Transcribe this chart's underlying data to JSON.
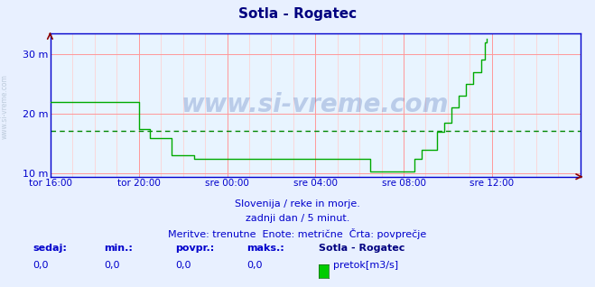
{
  "title": "Sotla - Rogatec",
  "title_color": "#000080",
  "bg_color": "#e8f0ff",
  "plot_bg_color": "#e8f4ff",
  "axis_color": "#0000cc",
  "grid_color_major": "#ff9999",
  "grid_color_minor": "#ffcccc",
  "line_color": "#00aa00",
  "avg_line_color": "#008800",
  "xlabel_color": "#0000aa",
  "watermark": "www.si-vreme.com",
  "watermark_color": "#3355aa",
  "subtitle1": "Slovenija / reke in morje.",
  "subtitle2": "zadnji dan / 5 minut.",
  "subtitle3": "Meritve: trenutne  Enote: metrične  Črta: povprečje",
  "footer_labels": [
    "sedaj:",
    "min.:",
    "povpr.:",
    "maks.:"
  ],
  "footer_values": [
    "0,0",
    "0,0",
    "0,0",
    "0,0"
  ],
  "footer_station": "Sotla - Rogatec",
  "footer_legend": "pretok[m3/s]",
  "footer_legend_color": "#00cc00",
  "ylim": [
    9.5,
    33.5
  ],
  "yticks": [
    10,
    20,
    30
  ],
  "ytick_labels": [
    "10 m",
    "20 m",
    "30 m"
  ],
  "avg_value": 17.2,
  "x_tick_labels": [
    "tor 16:00",
    "tor 20:00",
    "sre 00:00",
    "sre 04:00",
    "sre 08:00",
    "sre 12:00"
  ],
  "x_tick_positions": [
    0,
    48,
    96,
    144,
    192,
    240
  ],
  "total_points": 288,
  "series": [
    22,
    22,
    22,
    22,
    22,
    22,
    22,
    22,
    22,
    22,
    22,
    22,
    22,
    22,
    22,
    22,
    22,
    22,
    22,
    22,
    22,
    22,
    22,
    22,
    22,
    22,
    22,
    22,
    22,
    22,
    22,
    22,
    22,
    22,
    22,
    22,
    22,
    22,
    22,
    22,
    22,
    22,
    22,
    22,
    22,
    22,
    22,
    22,
    17.5,
    17.5,
    17.5,
    17.5,
    17.5,
    17.5,
    16,
    16,
    16,
    16,
    16,
    16,
    16,
    16,
    16,
    16,
    16,
    16,
    13,
    13,
    13,
    13,
    13,
    13,
    13,
    13,
    13,
    13,
    13,
    13,
    12.5,
    12.5,
    12.5,
    12.5,
    12.5,
    12.5,
    12.5,
    12.5,
    12.5,
    12.5,
    12.5,
    12.5,
    12.5,
    12.5,
    12.5,
    12.5,
    12.5,
    12.5,
    12.5,
    12.5,
    12.5,
    12.5,
    12.5,
    12.5,
    12.5,
    12.5,
    12.5,
    12.5,
    12.5,
    12.5,
    12.5,
    12.5,
    12.5,
    12.5,
    12.5,
    12.5,
    12.5,
    12.5,
    12.5,
    12.5,
    12.5,
    12.5,
    12.5,
    12.5,
    12.5,
    12.5,
    12.5,
    12.5,
    12.5,
    12.5,
    12.5,
    12.5,
    12.5,
    12.5,
    12.5,
    12.5,
    12.5,
    12.5,
    12.5,
    12.5,
    12.5,
    12.5,
    12.5,
    12.5,
    12.5,
    12.5,
    12.5,
    12.5,
    12.5,
    12.5,
    12.5,
    12.5,
    12.5,
    12.5,
    12.5,
    12.5,
    12.5,
    12.5,
    12.5,
    12.5,
    12.5,
    12.5,
    12.5,
    12.5,
    12.5,
    12.5,
    12.5,
    12.5,
    12.5,
    12.5,
    12.5,
    12.5,
    12.5,
    12.5,
    12.5,
    12.5,
    10.3,
    10.3,
    10.3,
    10.3,
    10.3,
    10.3,
    10.3,
    10.3,
    10.3,
    10.3,
    10.3,
    10.3,
    10.3,
    10.3,
    10.3,
    10.3,
    10.3,
    10.3,
    10.3,
    10.3,
    10.3,
    10.3,
    10.3,
    10.3,
    12.5,
    12.5,
    12.5,
    12.5,
    14,
    14,
    14,
    14,
    14,
    14,
    14,
    14,
    17,
    17,
    17,
    17,
    18.5,
    18.5,
    18.5,
    18.5,
    21,
    21,
    21,
    21,
    23,
    23,
    23,
    23,
    25,
    25,
    25,
    25,
    27,
    27,
    27,
    27,
    29,
    29,
    32,
    32.5
  ]
}
